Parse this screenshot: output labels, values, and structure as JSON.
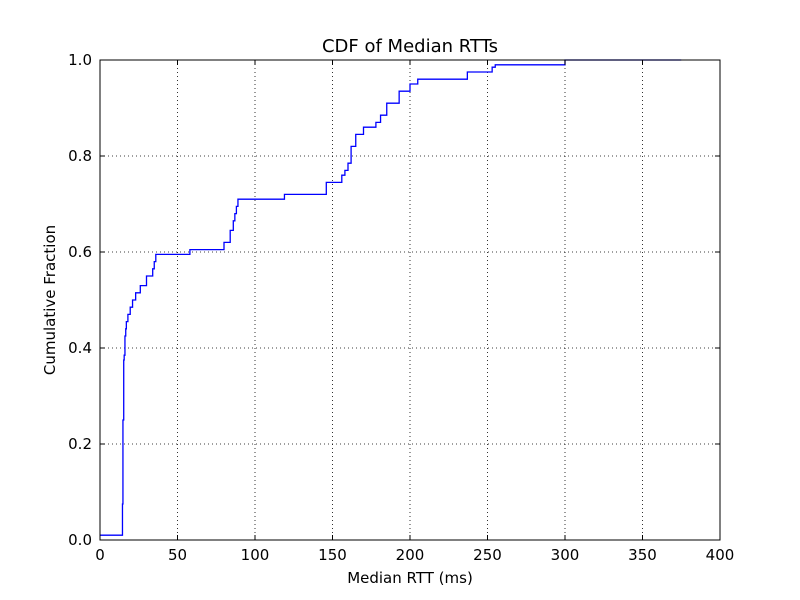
{
  "chart_data": {
    "type": "line",
    "subtype": "step-cdf",
    "title": "CDF of Median RTTs",
    "xlabel": "Median RTT (ms)",
    "ylabel": "Cumulative Fraction",
    "xlim": [
      0,
      400
    ],
    "ylim": [
      0,
      1.0
    ],
    "xticks": [
      0,
      50,
      100,
      150,
      200,
      250,
      300,
      350,
      400
    ],
    "xtick_labels": [
      "0",
      "50",
      "100",
      "150",
      "200",
      "250",
      "300",
      "350",
      "400"
    ],
    "yticks": [
      0.0,
      0.2,
      0.4,
      0.6,
      0.8,
      1.0
    ],
    "ytick_labels": [
      "0.0",
      "0.2",
      "0.4",
      "0.6",
      "0.8",
      "1.0"
    ],
    "grid": true,
    "grid_style": "dotted",
    "legend": false,
    "line_color": "#0000ff",
    "series": [
      {
        "x": [
          0,
          14.5,
          14.5,
          14.8,
          14.8,
          15.3,
          15.3,
          15.6,
          15.6,
          16.1,
          16.1,
          16.6,
          16.6,
          17.0,
          17.0,
          18.0,
          18.0,
          19.5,
          19.5,
          21.0,
          21.0,
          23.0,
          23.0,
          26.0,
          26.0,
          30.0,
          30.0,
          34.0,
          34.0,
          35.0,
          35.0,
          36.0,
          36.0,
          58.0,
          58.0,
          80.0,
          80.0,
          84.0,
          84.0,
          86.0,
          86.0,
          87.0,
          87.0,
          88.0,
          88.0,
          89.0,
          89.0,
          119.0,
          119.0,
          146.0,
          146.0,
          156.0,
          156.0,
          158.0,
          158.0,
          160.0,
          160.0,
          162.0,
          162.0,
          165.0,
          165.0,
          170.0,
          170.0,
          178.0,
          178.0,
          181.0,
          181.0,
          185.0,
          185.0,
          193.0,
          193.0,
          200.0,
          200.0,
          205.0,
          205.0,
          237.0,
          237.0,
          253.0,
          253.0,
          255.0,
          255.0,
          300.0,
          300.0,
          315.0,
          315.0,
          375.0
        ],
        "y": [
          0.01,
          0.01,
          0.075,
          0.075,
          0.25,
          0.25,
          0.375,
          0.375,
          0.385,
          0.385,
          0.425,
          0.425,
          0.44,
          0.44,
          0.455,
          0.455,
          0.47,
          0.47,
          0.485,
          0.485,
          0.5,
          0.5,
          0.515,
          0.515,
          0.53,
          0.53,
          0.55,
          0.55,
          0.565,
          0.565,
          0.58,
          0.58,
          0.595,
          0.595,
          0.605,
          0.605,
          0.62,
          0.62,
          0.645,
          0.645,
          0.665,
          0.665,
          0.68,
          0.68,
          0.695,
          0.695,
          0.71,
          0.71,
          0.72,
          0.72,
          0.745,
          0.745,
          0.76,
          0.76,
          0.77,
          0.77,
          0.785,
          0.785,
          0.82,
          0.82,
          0.845,
          0.845,
          0.86,
          0.86,
          0.87,
          0.87,
          0.885,
          0.885,
          0.91,
          0.91,
          0.935,
          0.935,
          0.95,
          0.95,
          0.96,
          0.96,
          0.975,
          0.975,
          0.985,
          0.985,
          0.99,
          0.99,
          1.0,
          1.0,
          1.0,
          1.0
        ]
      }
    ]
  }
}
